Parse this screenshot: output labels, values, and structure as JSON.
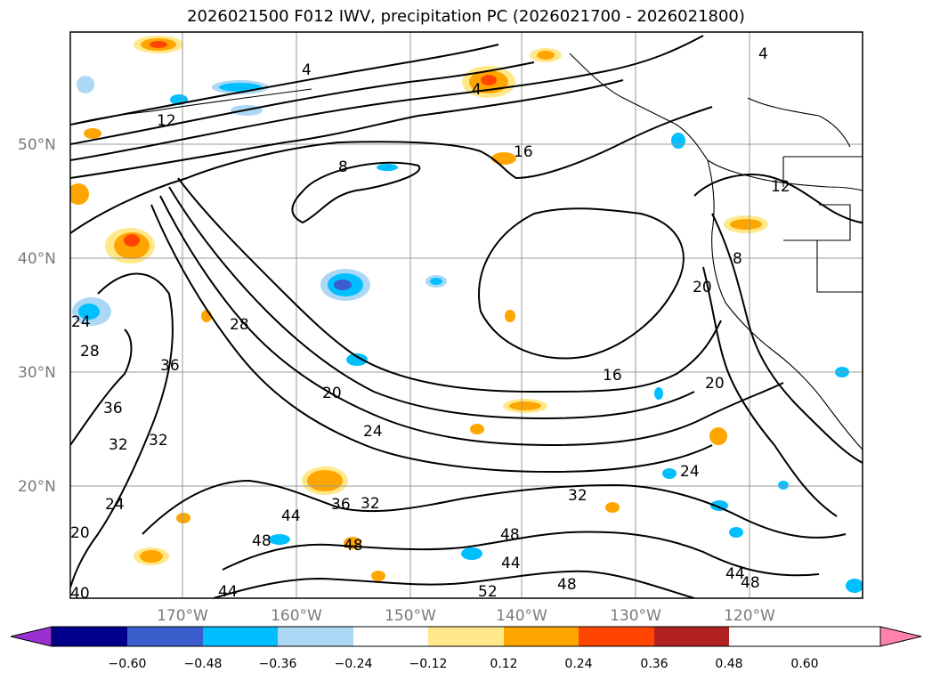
{
  "title": "2026021500 F012 IWV, precipitation PC (2026021700 - 2026021800)",
  "lat_labels": [
    "50°N",
    "40°N",
    "30°N",
    "20°N"
  ],
  "lon_labels": [
    "170°W",
    "160°W",
    "150°W",
    "140°W",
    "130°W",
    "120°W"
  ],
  "colorbar": {
    "colors": [
      "#9b30d0",
      "#00008b",
      "#3a5fcd",
      "#00bfff",
      "#add8f5",
      "#ffffff",
      "#ffe88a",
      "#ffa500",
      "#ff4500",
      "#b22222",
      "#ff82ab"
    ],
    "tick_labels": [
      "−0.60",
      "−0.48",
      "−0.36",
      "−0.24",
      "−0.12",
      "0.12",
      "0.24",
      "0.36",
      "0.48",
      "0.60"
    ]
  },
  "contour_labels": [
    "4",
    "4",
    "4",
    "8",
    "8",
    "12",
    "12",
    "16",
    "16",
    "20",
    "20",
    "20",
    "20",
    "24",
    "24",
    "24",
    "24",
    "28",
    "28",
    "32",
    "32",
    "32",
    "32",
    "36",
    "36",
    "36",
    "40",
    "44",
    "44",
    "44",
    "44",
    "48",
    "48",
    "48",
    "48",
    "48",
    "52"
  ],
  "colors": {
    "contour": "#000000",
    "grid": "#9a9a9a",
    "axis_label": "#7a7a7a"
  }
}
